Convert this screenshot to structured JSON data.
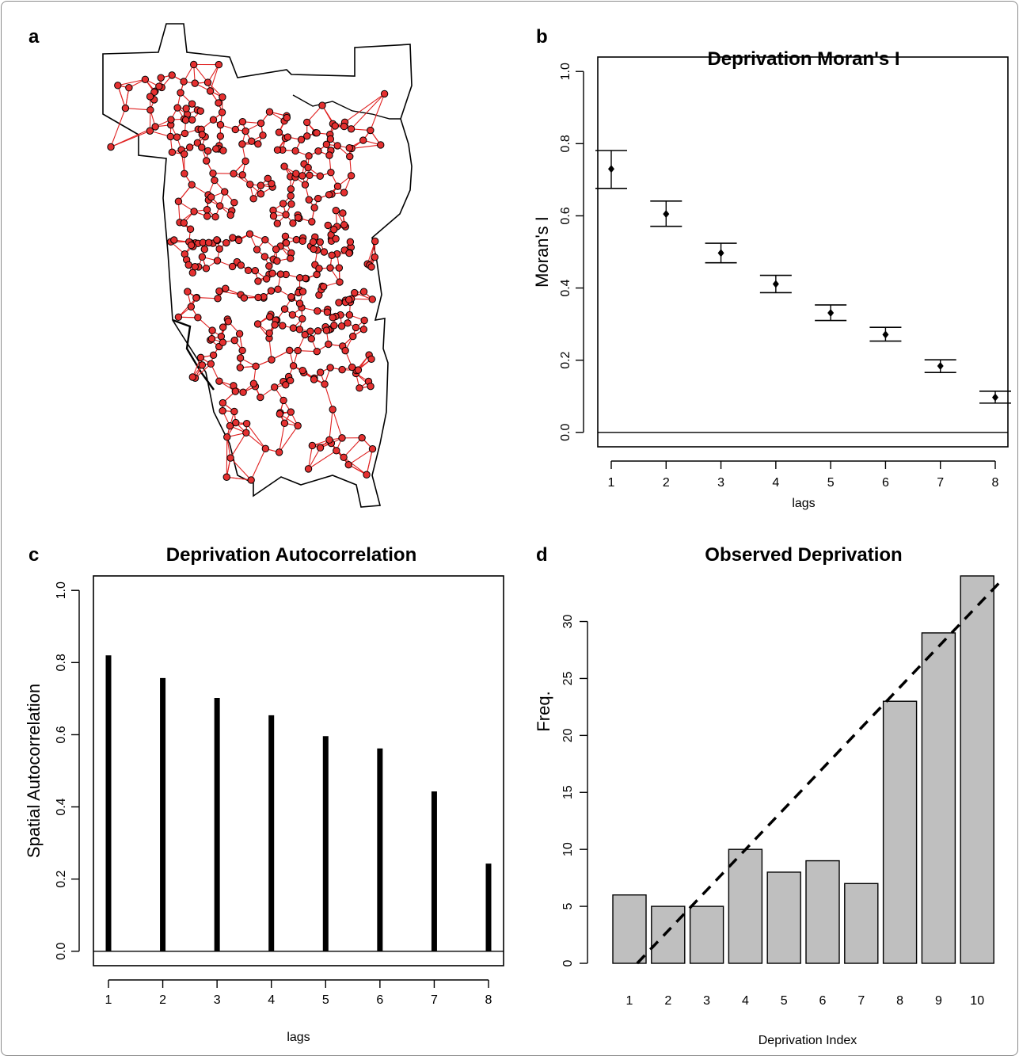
{
  "panels": {
    "a": {
      "letter": "a"
    },
    "b": {
      "letter": "b"
    },
    "c": {
      "letter": "c"
    },
    "d": {
      "letter": "d"
    }
  },
  "chart_data": [
    {
      "id": "b",
      "type": "scatter",
      "title": "Deprivation Moran's I",
      "xlabel": "lags",
      "ylabel": "Moran's I",
      "x": [
        1,
        2,
        3,
        4,
        5,
        6,
        7,
        8
      ],
      "values": [
        0.73,
        0.605,
        0.497,
        0.411,
        0.331,
        0.271,
        0.184,
        0.097
      ],
      "ci_lower": [
        0.676,
        0.571,
        0.47,
        0.387,
        0.31,
        0.253,
        0.166,
        0.081
      ],
      "ci_upper": [
        0.781,
        0.641,
        0.524,
        0.435,
        0.353,
        0.291,
        0.201,
        0.114
      ],
      "xticks": [
        "1",
        "2",
        "3",
        "4",
        "5",
        "6",
        "7",
        "8"
      ],
      "yticks": [
        "0.0",
        "0.2",
        "0.4",
        "0.6",
        "0.8",
        "1.0"
      ],
      "ylim": [
        -0.04,
        1.04
      ],
      "hline": 0,
      "grid": false
    },
    {
      "id": "c",
      "type": "bar",
      "title": "Deprivation Autocorrelation",
      "xlabel": "lags",
      "ylabel": "Spatial Autocorrelation",
      "categories": [
        "1",
        "2",
        "3",
        "4",
        "5",
        "6",
        "7",
        "8"
      ],
      "values": [
        0.82,
        0.757,
        0.702,
        0.654,
        0.596,
        0.562,
        0.443,
        0.243
      ],
      "yticks": [
        "0.0",
        "0.2",
        "0.4",
        "0.6",
        "0.8",
        "1.0"
      ],
      "ylim": [
        -0.04,
        1.04
      ],
      "hline": 0,
      "grid": false
    },
    {
      "id": "d",
      "type": "bar",
      "title": "Observed Deprivation",
      "xlabel": "Deprivation Index",
      "ylabel": "Freq.",
      "categories": [
        "1",
        "2",
        "3",
        "4",
        "5",
        "6",
        "7",
        "8",
        "9",
        "10"
      ],
      "values": [
        6,
        5,
        5,
        10,
        8,
        9,
        7,
        23,
        29,
        34
      ],
      "yticks": [
        "0",
        "5",
        "10",
        "15",
        "20",
        "25",
        "30"
      ],
      "ylim": [
        0,
        34
      ],
      "trend_line": {
        "x": [
          1.2,
          10.6
        ],
        "y": [
          0,
          33.5
        ]
      },
      "bar_color": "#bfbfbf",
      "grid": false
    }
  ]
}
